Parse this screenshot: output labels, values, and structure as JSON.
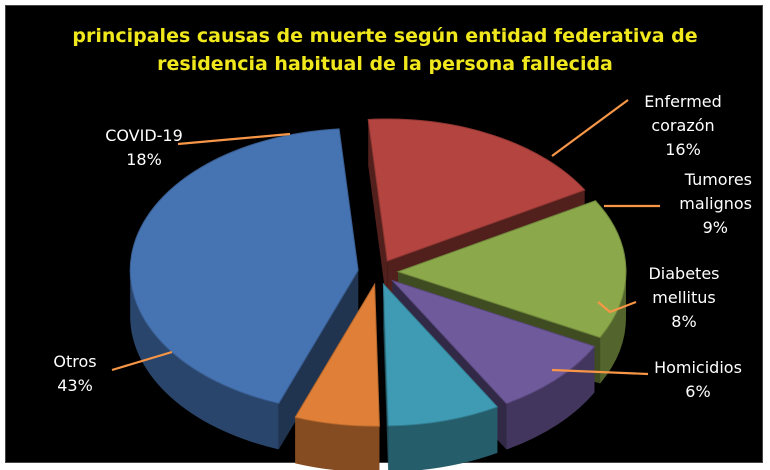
{
  "chart_data": {
    "type": "pie",
    "title": "principales causas de muerte según entidad federativa de residencia habitual de la persona fallecida",
    "title_lines": [
      "principales causas de muerte según entidad federativa de",
      "residencia habitual de la persona fallecida"
    ],
    "slices": [
      {
        "label_lines": [
          "Enfermed",
          "corazón"
        ],
        "value_text": "16%",
        "value": 16,
        "color": "#8ba84a"
      },
      {
        "label_lines": [
          "Tumores",
          "malignos"
        ],
        "value_text": "9%",
        "value": 9,
        "color": "#6f5a9c"
      },
      {
        "label_lines": [
          "Diabetes",
          "mellitus"
        ],
        "value_text": "8%",
        "value": 8,
        "color": "#3e9bb3"
      },
      {
        "label_lines": [
          "Homicidios"
        ],
        "value_text": "6%",
        "value": 6,
        "color": "#e07f37"
      },
      {
        "label_lines": [
          "Otros"
        ],
        "value_text": "43%",
        "value": 43,
        "color": "#4673b2"
      },
      {
        "label_lines": [
          "COVID-19"
        ],
        "value_text": "18%",
        "value": 18,
        "color": "#b3443f"
      }
    ],
    "three_d": true,
    "exploded": true,
    "background": "#000000",
    "title_color": "#f0e81c",
    "leader_color": "#f79646",
    "label_color": "#ffffff"
  }
}
